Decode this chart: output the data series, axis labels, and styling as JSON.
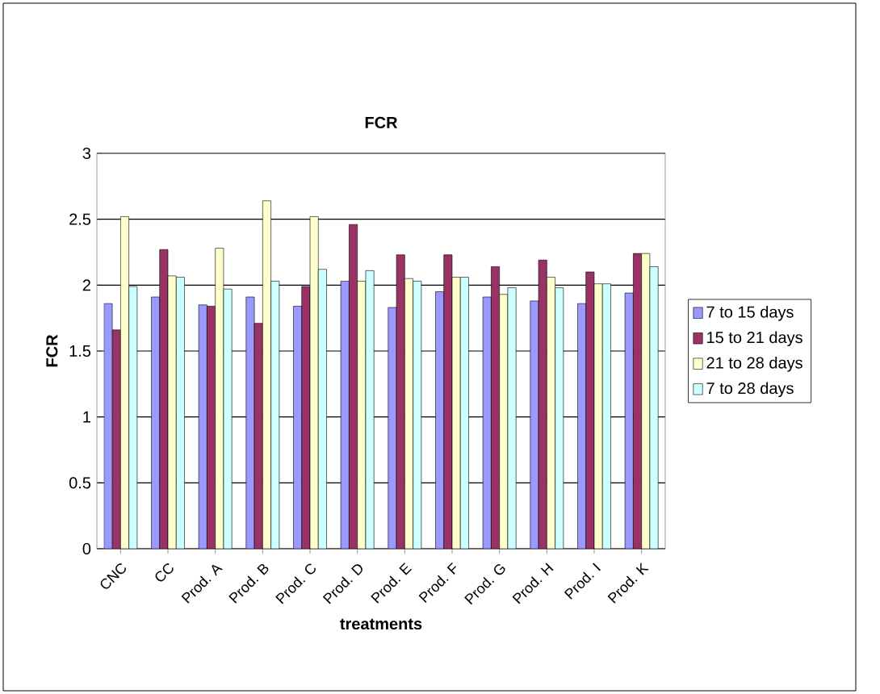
{
  "chart_data": {
    "type": "bar",
    "title": "FCR",
    "xlabel": "treatments",
    "ylabel": "FCR",
    "categories": [
      "CNC",
      "CC",
      "Prod. A",
      "Prod. B",
      "Prod. C",
      "Prod. D",
      "Prod. E",
      "Prod. F",
      "Prod. G",
      "Prod. H",
      "Prod. I",
      "Prod. K"
    ],
    "series": [
      {
        "name": "7 to 15 days",
        "color": "#9999ff",
        "values": [
          1.86,
          1.91,
          1.85,
          1.91,
          1.84,
          2.03,
          1.83,
          1.95,
          1.91,
          1.88,
          1.86,
          1.94
        ]
      },
      {
        "name": "15 to 21 days",
        "color": "#993366",
        "values": [
          1.66,
          2.27,
          1.84,
          1.71,
          1.99,
          2.46,
          2.23,
          2.23,
          2.14,
          2.19,
          2.1,
          2.24
        ]
      },
      {
        "name": "21 to 28 days",
        "color": "#ffffcc",
        "values": [
          2.52,
          2.07,
          2.28,
          2.64,
          2.52,
          2.03,
          2.05,
          2.06,
          1.93,
          2.06,
          2.01,
          2.24
        ]
      },
      {
        "name": "7 to 28 days",
        "color": "#ccffff",
        "values": [
          1.99,
          2.06,
          1.97,
          2.03,
          2.12,
          2.11,
          2.03,
          2.06,
          1.98,
          1.98,
          2.01,
          2.14
        ]
      }
    ],
    "ylim": [
      0,
      3
    ],
    "yticks": [
      0,
      0.5,
      1,
      1.5,
      2,
      2.5,
      3
    ],
    "grid": "y",
    "legend": "right"
  }
}
